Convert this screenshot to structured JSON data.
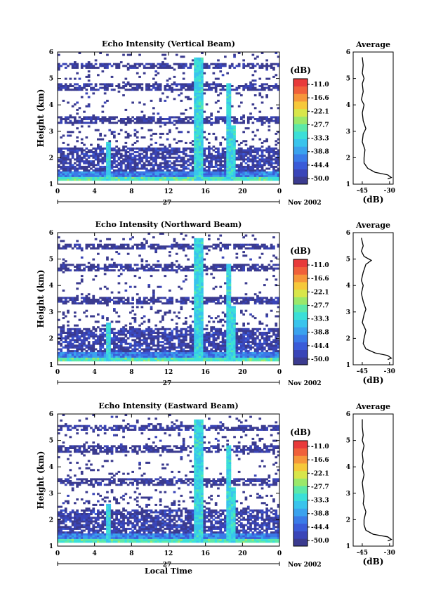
{
  "figure": {
    "date_label": "Nov 2002",
    "day_label": "27",
    "x_axis_title": "Local Time"
  },
  "chart_data": [
    {
      "type": "heatmap",
      "title": "Echo Intensity (Vertical Beam)",
      "ylabel": "Height (km)",
      "x_ticks": [
        "0",
        "4",
        "8",
        "12",
        "16",
        "20",
        "0"
      ],
      "xlim": [
        0,
        24
      ],
      "y_ticks": [
        "1",
        "2",
        "3",
        "4",
        "5",
        "6"
      ],
      "ylim": [
        1,
        6
      ],
      "colorbar": {
        "unit": "(dB)",
        "ticks": [
          "-11.0",
          "-16.6",
          "-22.1",
          "-27.7",
          "-33.3",
          "-38.8",
          "-44.4",
          "-50.0"
        ],
        "range": [
          -50.0,
          -11.0
        ]
      },
      "profile": {
        "title": "Average",
        "xlabel": "(dB)",
        "x_ticks": [
          "-45",
          "-30"
        ],
        "xlim": [
          -50,
          -28
        ],
        "heights": [
          1.2,
          1.25,
          1.35,
          1.45,
          1.6,
          1.8,
          2.0,
          2.3,
          2.6,
          2.9,
          3.1,
          3.4,
          3.7,
          4.0,
          4.2,
          4.5,
          4.8,
          5.0,
          5.2,
          5.5,
          5.8
        ],
        "values": [
          -31,
          -29,
          -31,
          -38,
          -42,
          -44,
          -44,
          -43.5,
          -45,
          -44.5,
          -43,
          -44.5,
          -45,
          -44,
          -45.5,
          -44.5,
          -45,
          -44,
          -45,
          -44.5,
          -45
        ]
      }
    },
    {
      "type": "heatmap",
      "title": "Echo Intensity (Northward Beam)",
      "ylabel": "Height (km)",
      "x_ticks": [
        "0",
        "4",
        "8",
        "12",
        "16",
        "20",
        "0"
      ],
      "xlim": [
        0,
        24
      ],
      "y_ticks": [
        "1",
        "2",
        "3",
        "4",
        "5",
        "6"
      ],
      "ylim": [
        1,
        6
      ],
      "colorbar": {
        "unit": "(dB)",
        "ticks": [
          "-11.0",
          "-16.6",
          "-22.1",
          "-27.7",
          "-33.3",
          "-38.8",
          "-44.4",
          "-50.0"
        ],
        "range": [
          -50.0,
          -11.0
        ]
      },
      "profile": {
        "title": "Average",
        "xlabel": "(dB)",
        "x_ticks": [
          "-45",
          "-30"
        ],
        "xlim": [
          -50,
          -28
        ],
        "heights": [
          1.2,
          1.25,
          1.35,
          1.45,
          1.6,
          1.8,
          2.0,
          2.3,
          2.6,
          2.9,
          3.1,
          3.4,
          3.7,
          4.0,
          4.2,
          4.5,
          4.8,
          4.95,
          5.1,
          5.3,
          5.5,
          5.8
        ],
        "values": [
          -31,
          -29,
          -31,
          -38,
          -43,
          -44.5,
          -44,
          -43,
          -45,
          -44,
          -43,
          -44.5,
          -45.5,
          -44.5,
          -45.5,
          -44.5,
          -43,
          -40,
          -44,
          -45.5,
          -44.5,
          -45.5
        ]
      }
    },
    {
      "type": "heatmap",
      "title": "Echo Intensity (Eastward Beam)",
      "ylabel": "Height (km)",
      "x_ticks": [
        "0",
        "4",
        "8",
        "12",
        "16",
        "20",
        "0"
      ],
      "xlim": [
        0,
        24
      ],
      "y_ticks": [
        "1",
        "2",
        "3",
        "4",
        "5",
        "6"
      ],
      "ylim": [
        1,
        6
      ],
      "colorbar": {
        "unit": "(dB)",
        "ticks": [
          "-11.0",
          "-16.6",
          "-22.1",
          "-27.7",
          "-33.3",
          "-38.8",
          "-44.4",
          "-50.0"
        ],
        "range": [
          -50.0,
          -11.0
        ]
      },
      "profile": {
        "title": "Average",
        "xlabel": "(dB)",
        "x_ticks": [
          "-45",
          "-30"
        ],
        "xlim": [
          -50,
          -28
        ],
        "heights": [
          1.2,
          1.25,
          1.35,
          1.45,
          1.6,
          1.8,
          2.0,
          2.3,
          2.6,
          2.9,
          3.1,
          3.4,
          3.7,
          4.0,
          4.2,
          4.5,
          4.8,
          5.0,
          5.2,
          5.5,
          5.8
        ],
        "values": [
          -31,
          -29,
          -31,
          -39,
          -43,
          -44,
          -44,
          -43,
          -44.5,
          -44,
          -44.5,
          -45,
          -44,
          -45,
          -44.5,
          -45,
          -44,
          -45,
          -44.5,
          -45,
          -45
        ]
      }
    }
  ]
}
